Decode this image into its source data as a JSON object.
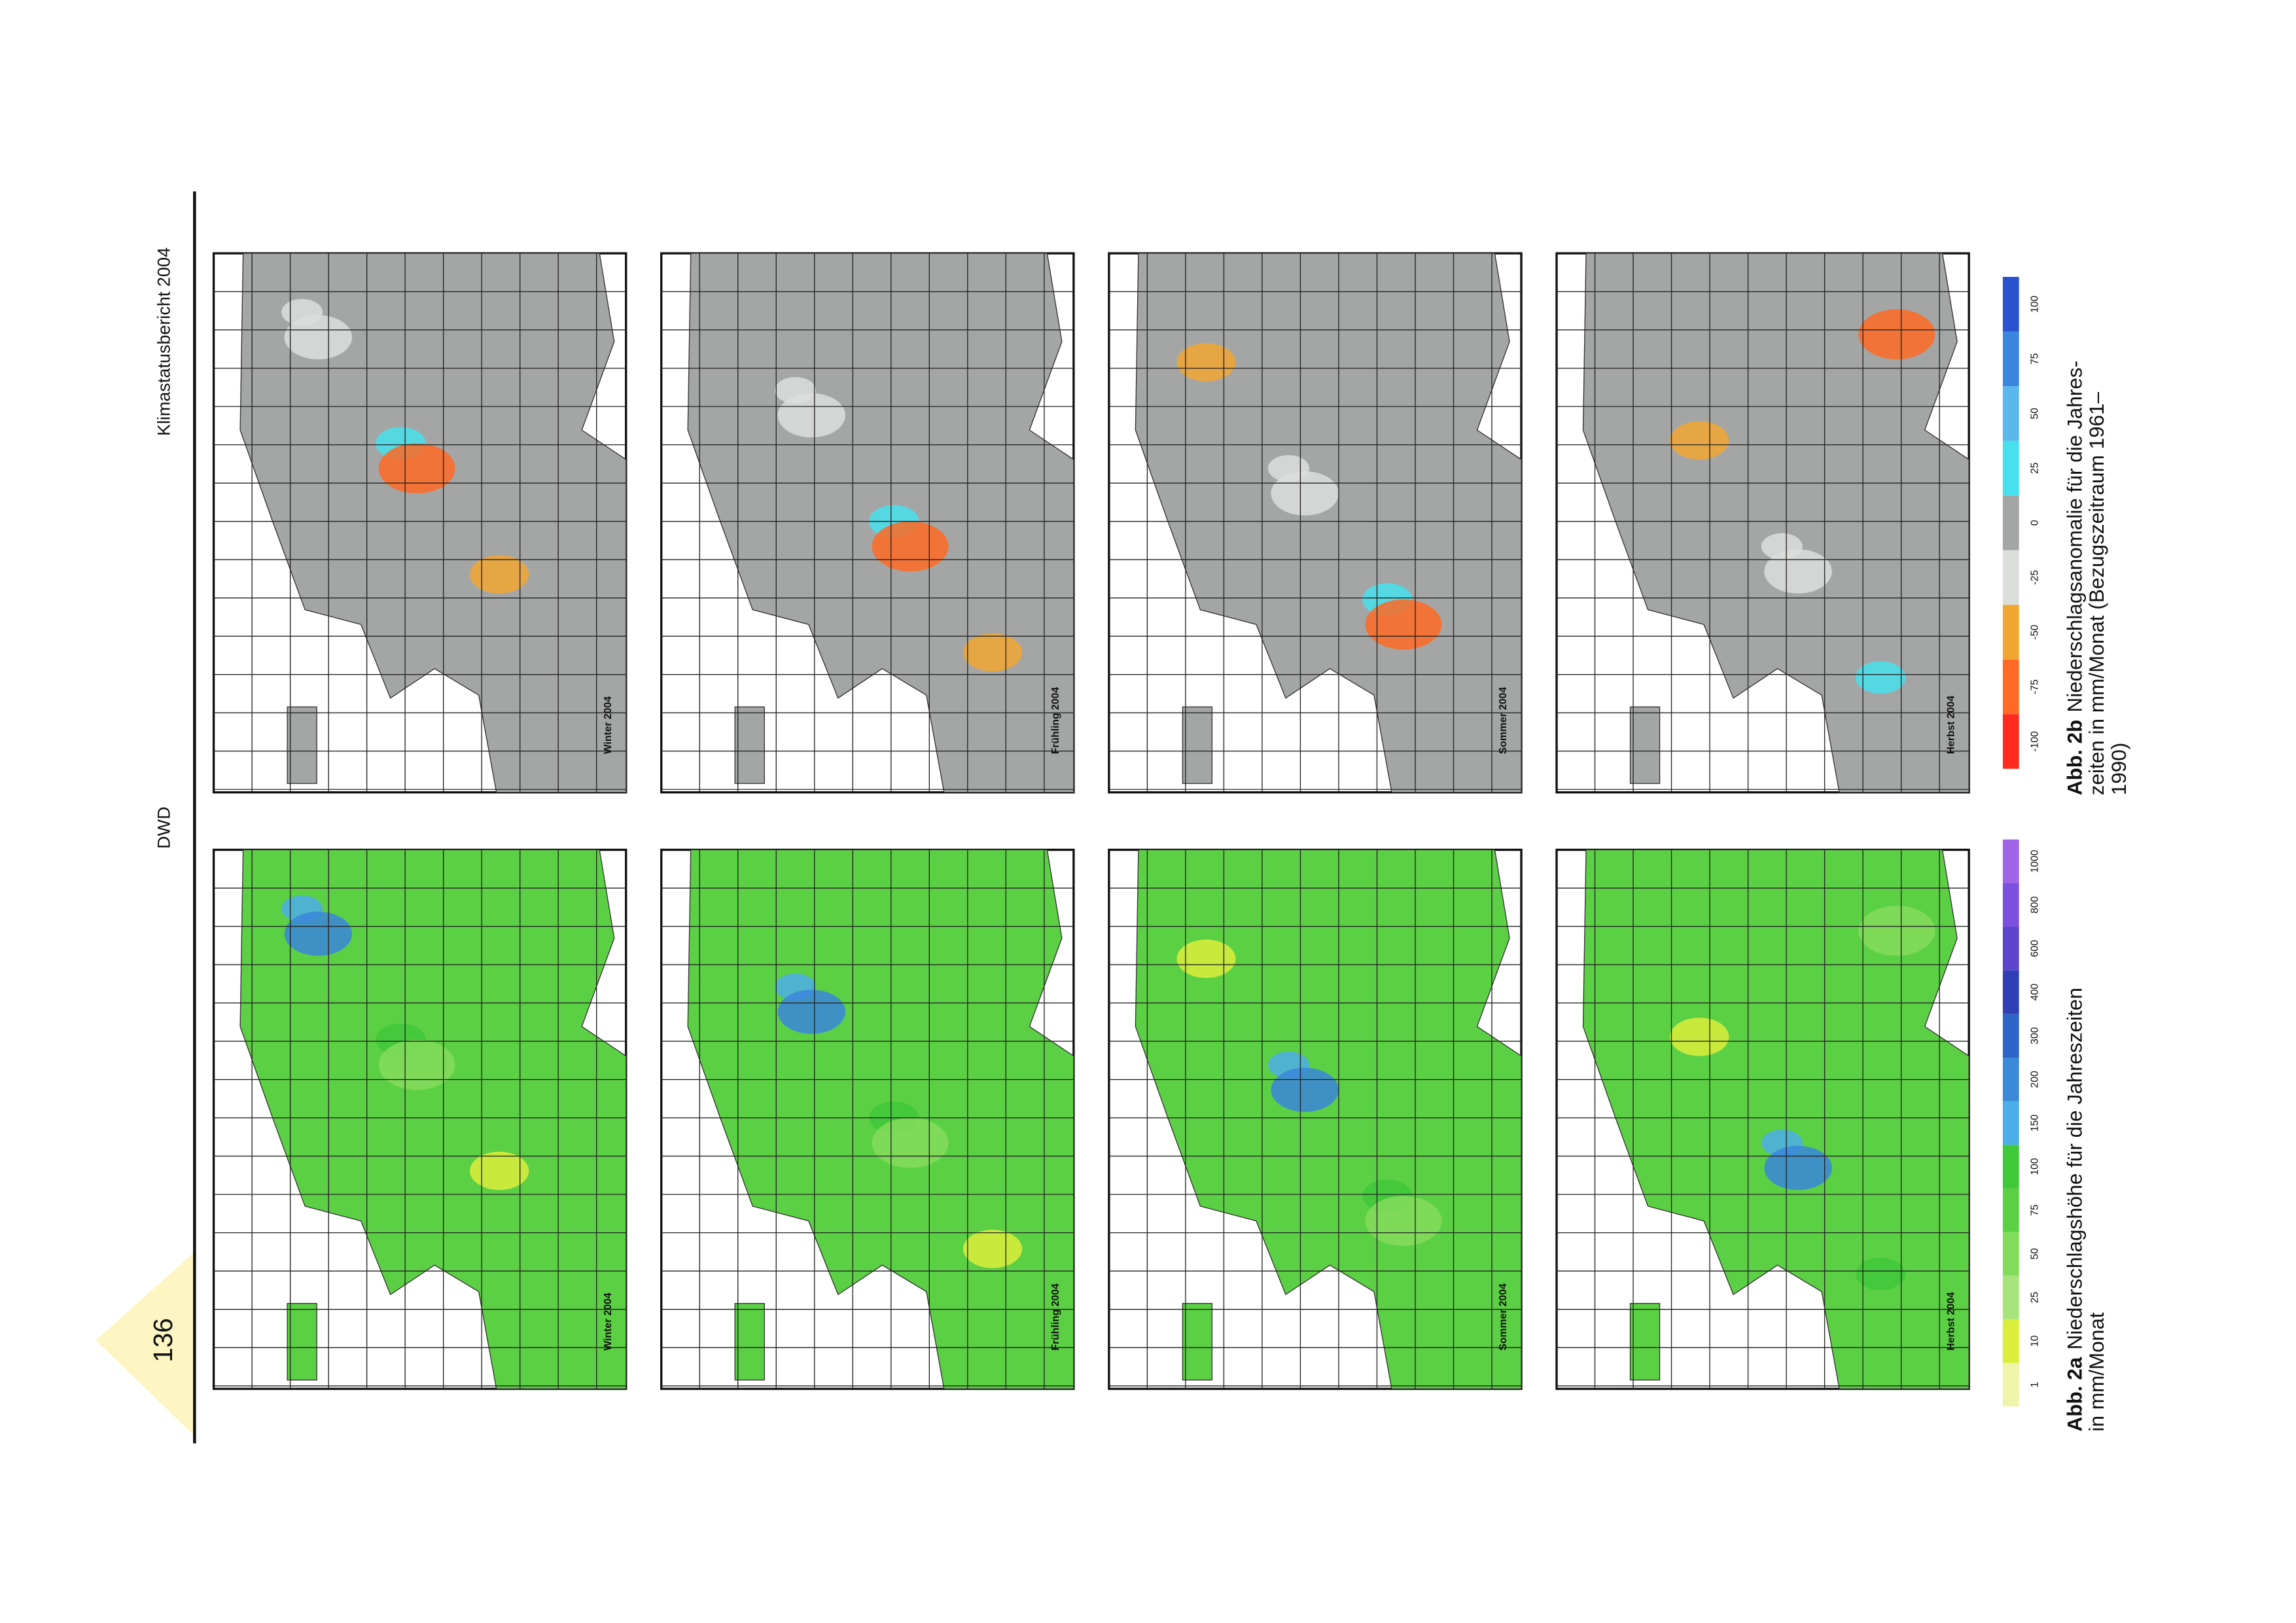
{
  "header": {
    "report": "Klimastatusbericht 2004",
    "org": "DWD",
    "page_number": "136"
  },
  "anomaly_maps": [
    "Winter 2004",
    "Frühling 2004",
    "Sommer 2004",
    "Herbst 2004"
  ],
  "precipitation_maps": [
    "Winter 2004",
    "Frühling 2004",
    "Sommer 2004",
    "Herbst 2004"
  ],
  "legend_a": [
    {
      "label": "1",
      "color": "#eef5a8"
    },
    {
      "label": "10",
      "color": "#dcee3c"
    },
    {
      "label": "25",
      "color": "#a8e47c"
    },
    {
      "label": "50",
      "color": "#84dc5c"
    },
    {
      "label": "75",
      "color": "#5cd044"
    },
    {
      "label": "100",
      "color": "#3ec83a"
    },
    {
      "label": "150",
      "color": "#4caee8"
    },
    {
      "label": "200",
      "color": "#3a8ad8"
    },
    {
      "label": "300",
      "color": "#2c64c8"
    },
    {
      "label": "400",
      "color": "#3040b4"
    },
    {
      "label": "600",
      "color": "#5c44cc"
    },
    {
      "label": "800",
      "color": "#7c50dc"
    },
    {
      "label": "1000",
      "color": "#a064e8"
    }
  ],
  "legend_b": [
    {
      "label": "-100",
      "color": "#ff2a20"
    },
    {
      "label": "-75",
      "color": "#ff6a24"
    },
    {
      "label": "-50",
      "color": "#f2a632"
    },
    {
      "label": "-25",
      "color": "#dcdedc"
    },
    {
      "label": "0",
      "color": "#a4a6a6"
    },
    {
      "label": "25",
      "color": "#48e0ec"
    },
    {
      "label": "50",
      "color": "#5ab8ec"
    },
    {
      "label": "75",
      "color": "#3a86dc"
    },
    {
      "label": "100",
      "color": "#2a52d0"
    }
  ],
  "caption_a": {
    "label": "Abb. 2a",
    "lines": [
      "Niederschlagshöhe für die Jahreszeiten",
      "in mm/Monat"
    ]
  },
  "caption_b": {
    "label": "Abb. 2b",
    "lines": [
      "Niederschlagsanomalie für die Jahres-",
      "zeiten in mm/Monat (Bezugszeitraum 1961–",
      "1990)"
    ]
  }
}
